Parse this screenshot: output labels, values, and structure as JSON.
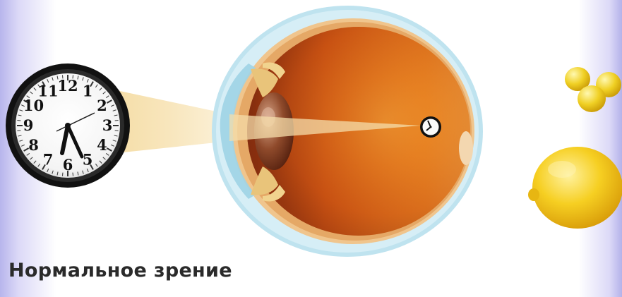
{
  "caption": "Нормальное зрение",
  "clock": {
    "numbers": [
      "12",
      "1",
      "2",
      "3",
      "4",
      "5",
      "6",
      "7",
      "8",
      "9",
      "10",
      "11"
    ]
  },
  "colors": {
    "eye_interior": "#e06a14",
    "sclera": "#bfe3ef",
    "lens": "#8a4a2a",
    "light_beam": "#f3d9a0",
    "lemon": "#f4c51a"
  },
  "icons": [
    "clock-icon",
    "eye-cross-section",
    "lemon-icon"
  ]
}
